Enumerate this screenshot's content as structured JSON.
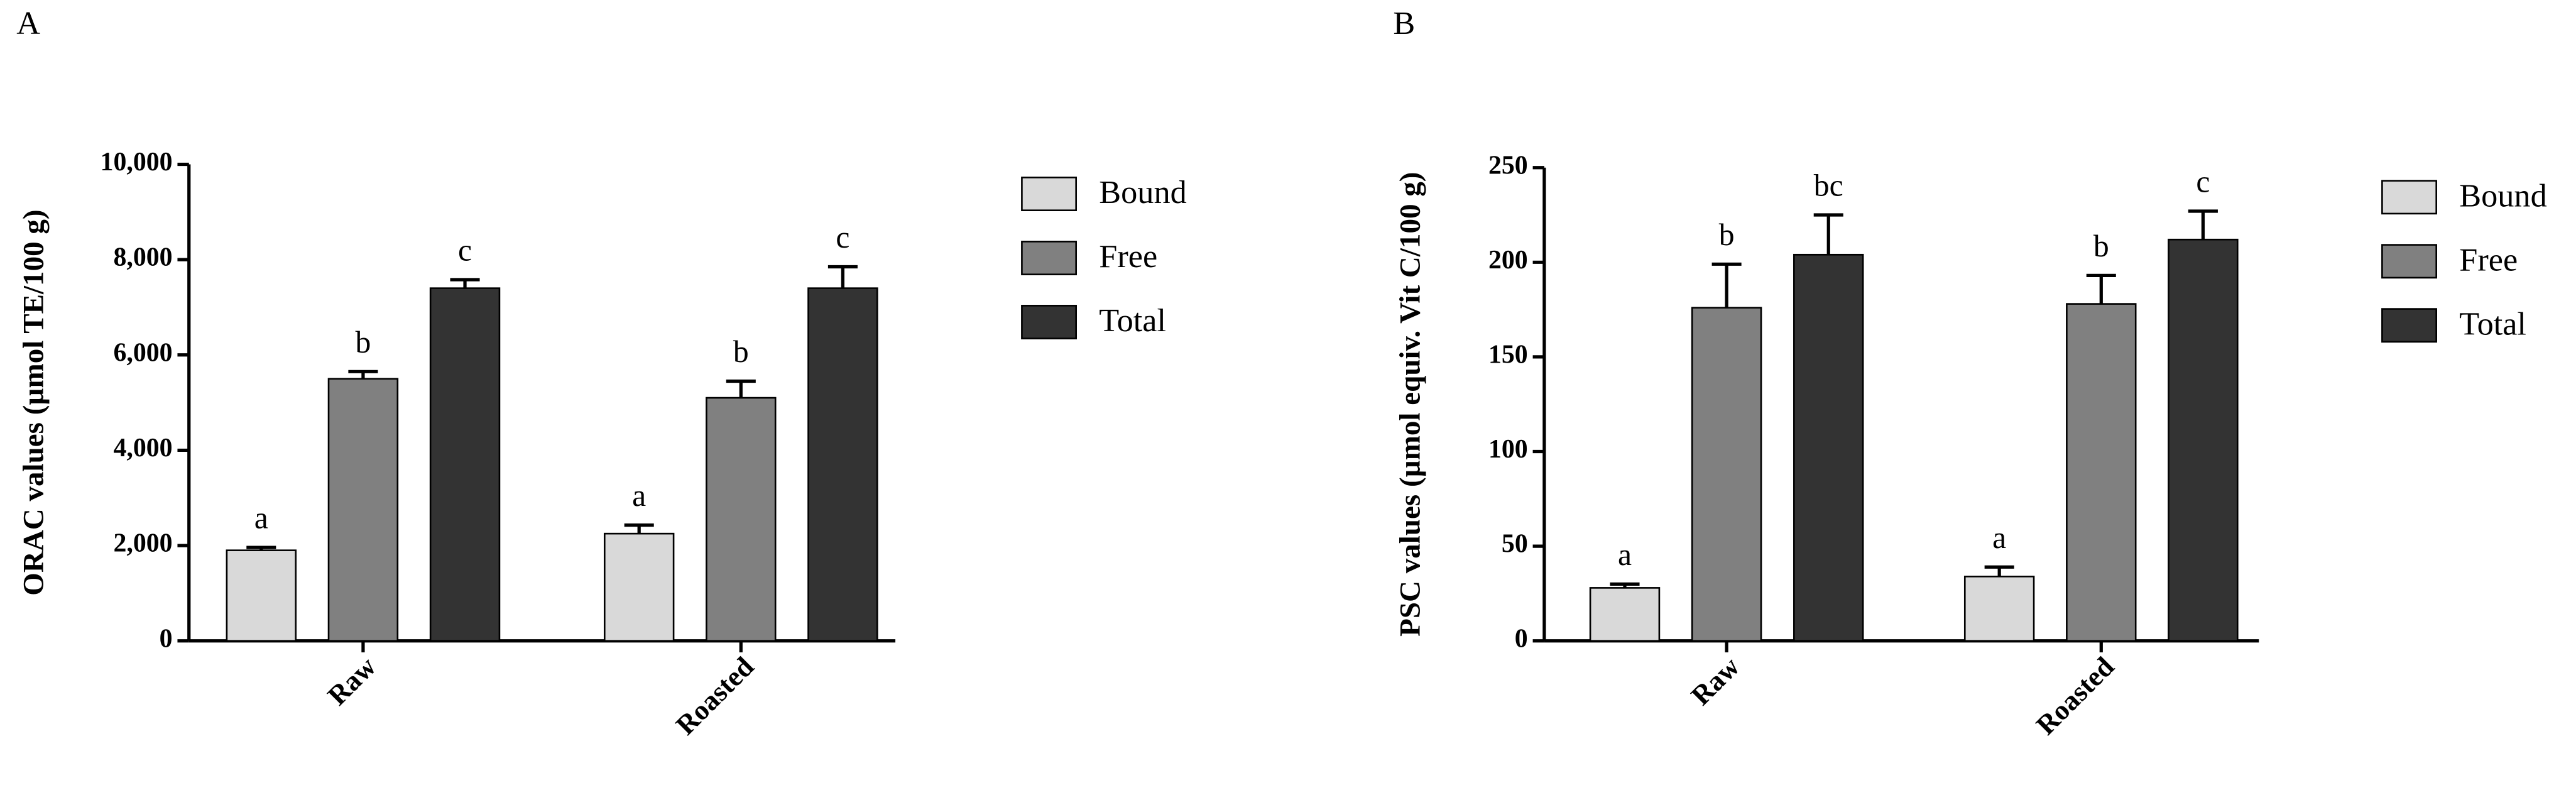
{
  "chart_data": [
    {
      "type": "bar",
      "panel": "A",
      "ylabel": "ORAC values (µmol TE/100 g)",
      "categories": [
        "Raw",
        "Roasted"
      ],
      "series": [
        {
          "name": "Bound",
          "color": "#d9d9d9",
          "values": [
            1900,
            2250
          ],
          "errors": [
            60,
            180
          ],
          "letters": [
            "a",
            "a"
          ]
        },
        {
          "name": "Free",
          "color": "#808080",
          "values": [
            5500,
            5100
          ],
          "errors": [
            150,
            350
          ],
          "letters": [
            "b",
            "b"
          ]
        },
        {
          "name": "Total",
          "color": "#333333",
          "values": [
            7400,
            7400
          ],
          "errors": [
            180,
            450
          ],
          "letters": [
            "c",
            "c"
          ]
        }
      ],
      "ylim": [
        0,
        10000
      ],
      "yticks": [
        0,
        {
          "value": 2000,
          "label": "2,000"
        },
        {
          "value": 4000,
          "label": "4,000"
        },
        {
          "value": 6000,
          "label": "6,000"
        },
        {
          "value": 8000,
          "label": "8,000"
        },
        {
          "value": 10000,
          "label": "10,000"
        }
      ],
      "legend": "right"
    },
    {
      "type": "bar",
      "panel": "B",
      "ylabel": "PSC values (µmol equiv. Vit C/100 g)",
      "categories": [
        "Raw",
        "Roasted"
      ],
      "series": [
        {
          "name": "Bound",
          "color": "#d9d9d9",
          "values": [
            28,
            34
          ],
          "errors": [
            2,
            5
          ],
          "letters": [
            "a",
            "a"
          ]
        },
        {
          "name": "Free",
          "color": "#808080",
          "values": [
            176,
            178
          ],
          "errors": [
            23,
            15
          ],
          "letters": [
            "b",
            "b"
          ]
        },
        {
          "name": "Total",
          "color": "#333333",
          "values": [
            204,
            212
          ],
          "errors": [
            21,
            15
          ],
          "letters": [
            "bc",
            "c"
          ]
        }
      ],
      "ylim": [
        0,
        250
      ],
      "yticks": [
        0,
        50,
        100,
        150,
        200,
        250
      ],
      "legend": "right"
    }
  ]
}
